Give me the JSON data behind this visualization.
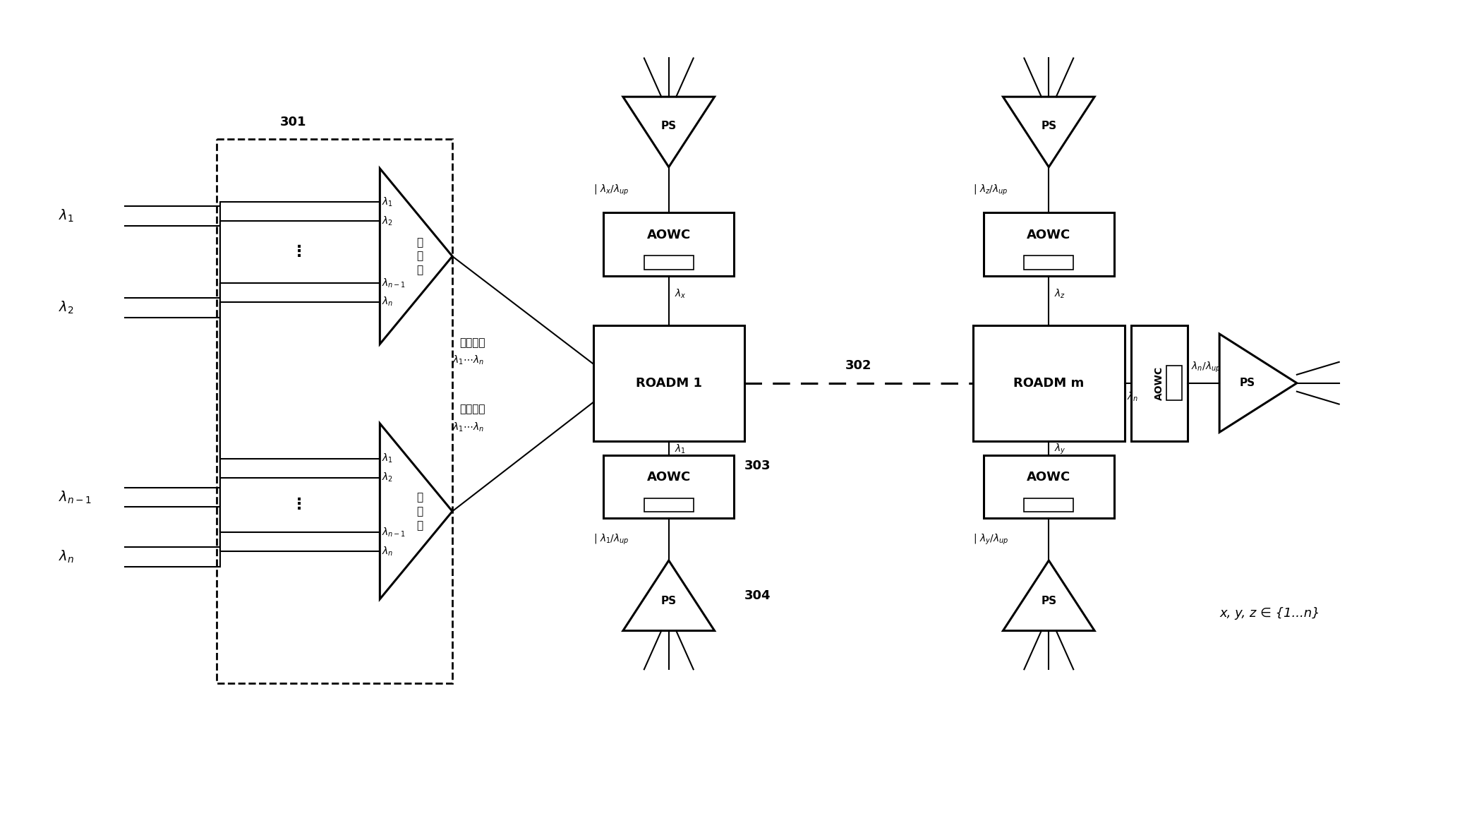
{
  "figsize": [
    20.79,
    11.83
  ],
  "dpi": 100,
  "bg": "#ffffff",
  "lw": 1.5,
  "lw_thick": 2.2,
  "fs": 11,
  "fs_sm": 10,
  "fs_lg": 13,
  "fs_xl": 14,
  "label_301": "301",
  "label_302": "302",
  "label_303": "303",
  "label_304": "304",
  "roadm1_label": "ROADM 1",
  "roadmm_label": "ROADM m",
  "aowc_label": "AOWC",
  "ps_label": "PS",
  "heqi": "合\n波\n器",
  "fenbo": "分\n波\n器",
  "downstream": "下行数据",
  "upstream": "上行数据",
  "xyz": "x, y, z ∈ {1...n}"
}
